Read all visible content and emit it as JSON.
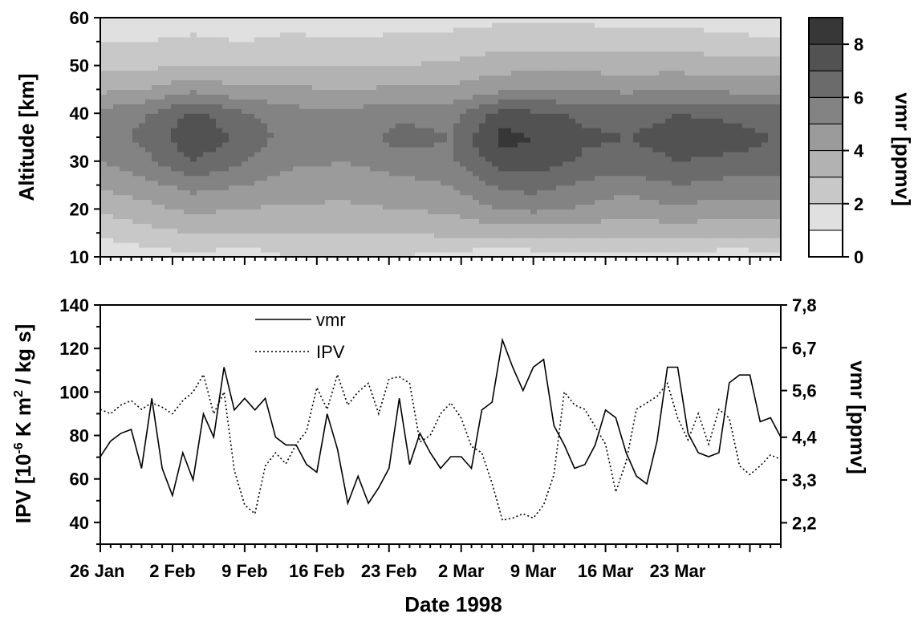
{
  "chart_data": [
    {
      "type": "heatmap",
      "xlabel": "",
      "ylabel": "Altitude [km]",
      "y_ticks": [
        "10",
        "20",
        "30",
        "40",
        "50",
        "60"
      ],
      "ylim": [
        10,
        60
      ],
      "xlim": [
        "1998-01-26",
        "1998-04-02"
      ],
      "colorbar": {
        "label": "vmr [ppmv]",
        "ticks": [
          "0",
          "2",
          "4",
          "6",
          "8"
        ],
        "levels": [
          0,
          1,
          2,
          3,
          4,
          5,
          6,
          7,
          8,
          9
        ],
        "colors": [
          "#ffffff",
          "#e0e0e0",
          "#c8c8c8",
          "#b2b2b2",
          "#9b9b9b",
          "#838383",
          "#6b6b6b",
          "#525252",
          "#373737",
          "#000000"
        ]
      },
      "altitudes": [
        10,
        15,
        20,
        25,
        30,
        35,
        40,
        45,
        50,
        55,
        60
      ],
      "dates": [
        "1998-01-26",
        "1998-01-30",
        "1998-02-04",
        "1998-02-09",
        "1998-02-13",
        "1998-02-19",
        "1998-02-24",
        "1998-03-01",
        "1998-03-06",
        "1998-03-09",
        "1998-03-14",
        "1998-03-18",
        "1998-03-23",
        "1998-03-28",
        "1998-04-01"
      ],
      "vmr": [
        [
          1.2,
          1.5,
          1.8,
          1.2,
          2.0,
          2.2,
          2.0,
          1.6,
          1.2,
          1.4,
          1.8,
          1.6,
          1.6,
          1.4,
          1.6
        ],
        [
          2.2,
          2.6,
          3.0,
          3.0,
          3.0,
          3.0,
          3.0,
          3.2,
          3.4,
          3.4,
          3.4,
          3.2,
          3.4,
          3.2,
          3.2
        ],
        [
          3.2,
          3.6,
          4.2,
          4.0,
          3.8,
          3.8,
          4.0,
          4.2,
          5.0,
          5.2,
          4.8,
          4.4,
          4.8,
          4.4,
          4.6
        ],
        [
          4.2,
          4.6,
          5.4,
          5.0,
          4.6,
          4.4,
          4.6,
          5.0,
          6.2,
          6.4,
          5.8,
          5.4,
          6.0,
          5.6,
          5.6
        ],
        [
          5.0,
          5.6,
          7.0,
          6.0,
          5.2,
          5.0,
          5.6,
          5.8,
          7.6,
          7.6,
          6.8,
          6.6,
          7.0,
          6.8,
          6.8
        ],
        [
          5.6,
          6.2,
          7.8,
          6.8,
          5.6,
          5.4,
          6.4,
          6.0,
          8.4,
          8.0,
          7.2,
          7.0,
          7.4,
          7.4,
          7.0
        ],
        [
          5.4,
          5.8,
          7.2,
          6.2,
          5.4,
          5.2,
          5.8,
          5.6,
          7.4,
          7.2,
          6.8,
          6.6,
          7.0,
          6.8,
          6.6
        ],
        [
          3.8,
          4.0,
          4.8,
          4.2,
          4.2,
          4.0,
          4.2,
          4.2,
          4.8,
          5.0,
          5.0,
          4.8,
          5.0,
          4.8,
          4.8
        ],
        [
          2.8,
          2.8,
          3.0,
          3.0,
          3.0,
          3.0,
          3.0,
          3.2,
          3.6,
          3.8,
          3.6,
          3.6,
          3.6,
          3.4,
          3.4
        ],
        [
          2.0,
          2.0,
          2.2,
          2.0,
          2.2,
          2.2,
          2.2,
          2.4,
          2.6,
          2.6,
          2.6,
          2.6,
          2.6,
          2.4,
          2.2
        ],
        [
          1.2,
          1.4,
          1.6,
          1.4,
          1.6,
          1.4,
          1.6,
          1.6,
          1.8,
          1.8,
          1.8,
          1.6,
          1.6,
          1.4,
          1.2
        ]
      ]
    },
    {
      "type": "line",
      "xlabel": "Date 1998",
      "ylabel": "IPV [10⁻⁶ K m² / kg s]",
      "ylabel_parts": {
        "pre": "IPV [10",
        "sup1": "-6",
        "mid": " K m",
        "sup2": "2",
        "post": " / kg s]"
      },
      "ylabel_right": "vmr [ppmv]",
      "ylim": [
        30,
        140
      ],
      "y_ticks": [
        "40",
        "60",
        "80",
        "100",
        "120",
        "140"
      ],
      "ylim_right": [
        1.65,
        7.8
      ],
      "y_ticks_right": [
        "2,2",
        "3,3",
        "4,4",
        "5,6",
        "6,7",
        "7,8"
      ],
      "x_tick_labels": [
        "26 Jan",
        "2 Feb",
        "9 Feb",
        "16 Feb",
        "23 Feb",
        "2 Mar",
        "9 Mar",
        "16 Mar",
        "23 Mar"
      ],
      "xlim": [
        "1998-01-26",
        "1998-04-02"
      ],
      "legend": {
        "position": "top-left",
        "entries": [
          "vmr",
          "IPV"
        ]
      },
      "series": [
        {
          "name": "vmr",
          "style": "solid",
          "axis": "right",
          "x": [
            "1998-01-26",
            "1998-01-27",
            "1998-01-28",
            "1998-01-29",
            "1998-01-30",
            "1998-01-31",
            "1998-02-01",
            "1998-02-02",
            "1998-02-03",
            "1998-02-04",
            "1998-02-05",
            "1998-02-06",
            "1998-02-07",
            "1998-02-08",
            "1998-02-09",
            "1998-02-10",
            "1998-02-11",
            "1998-02-12",
            "1998-02-13",
            "1998-02-14",
            "1998-02-15",
            "1998-02-16",
            "1998-02-17",
            "1998-02-18",
            "1998-02-19",
            "1998-02-20",
            "1998-02-21",
            "1998-02-22",
            "1998-02-23",
            "1998-02-24",
            "1998-02-25",
            "1998-02-26",
            "1998-02-27",
            "1998-02-28",
            "1998-03-01",
            "1998-03-02",
            "1998-03-03",
            "1998-03-04",
            "1998-03-05",
            "1998-03-06",
            "1998-03-07",
            "1998-03-08",
            "1998-03-09",
            "1998-03-10",
            "1998-03-11",
            "1998-03-12",
            "1998-03-13",
            "1998-03-14",
            "1998-03-15",
            "1998-03-16",
            "1998-03-17",
            "1998-03-18",
            "1998-03-19",
            "1998-03-20",
            "1998-03-21",
            "1998-03-22",
            "1998-03-23",
            "1998-03-24",
            "1998-03-25",
            "1998-03-26",
            "1998-03-27",
            "1998-03-28",
            "1998-03-29",
            "1998-03-30",
            "1998-03-31",
            "1998-04-01",
            "1998-04-02"
          ],
          "y": [
            3.9,
            4.3,
            4.5,
            4.6,
            3.6,
            5.4,
            3.6,
            2.9,
            4.0,
            3.3,
            5.0,
            4.4,
            6.2,
            5.1,
            5.4,
            5.1,
            5.4,
            4.4,
            4.2,
            4.2,
            3.7,
            3.5,
            5.0,
            4.1,
            2.7,
            3.4,
            2.7,
            3.1,
            3.6,
            5.4,
            3.7,
            4.5,
            4.0,
            3.6,
            3.9,
            3.9,
            3.6,
            5.1,
            5.3,
            6.9,
            6.2,
            5.6,
            6.2,
            6.4,
            4.7,
            4.2,
            3.6,
            3.7,
            4.2,
            5.1,
            4.9,
            4.0,
            3.4,
            3.2,
            4.3,
            6.2,
            6.2,
            4.5,
            4.0,
            3.9,
            4.0,
            5.8,
            6.0,
            6.0,
            4.8,
            4.9,
            4.4
          ]
        },
        {
          "name": "IPV",
          "style": "dotted",
          "axis": "left",
          "x": [
            "1998-01-26",
            "1998-01-27",
            "1998-01-28",
            "1998-01-29",
            "1998-01-30",
            "1998-01-31",
            "1998-02-01",
            "1998-02-02",
            "1998-02-03",
            "1998-02-04",
            "1998-02-05",
            "1998-02-06",
            "1998-02-07",
            "1998-02-08",
            "1998-02-09",
            "1998-02-10",
            "1998-02-11",
            "1998-02-12",
            "1998-02-13",
            "1998-02-14",
            "1998-02-15",
            "1998-02-16",
            "1998-02-17",
            "1998-02-18",
            "1998-02-19",
            "1998-02-20",
            "1998-02-21",
            "1998-02-22",
            "1998-02-23",
            "1998-02-24",
            "1998-02-25",
            "1998-02-26",
            "1998-02-27",
            "1998-02-28",
            "1998-03-01",
            "1998-03-02",
            "1998-03-03",
            "1998-03-04",
            "1998-03-05",
            "1998-03-06",
            "1998-03-07",
            "1998-03-08",
            "1998-03-09",
            "1998-03-10",
            "1998-03-11",
            "1998-03-12",
            "1998-03-13",
            "1998-03-14",
            "1998-03-15",
            "1998-03-16",
            "1998-03-17",
            "1998-03-18",
            "1998-03-19",
            "1998-03-20",
            "1998-03-21",
            "1998-03-22",
            "1998-03-23",
            "1998-03-24",
            "1998-03-25",
            "1998-03-26",
            "1998-03-27",
            "1998-03-28",
            "1998-03-29",
            "1998-03-30",
            "1998-03-31",
            "1998-04-01",
            "1998-04-02"
          ],
          "y": [
            92,
            90,
            94,
            96,
            92,
            95,
            93,
            90,
            96,
            100,
            108,
            90,
            100,
            64,
            48,
            44,
            66,
            72,
            67,
            76,
            82,
            102,
            92,
            108,
            94,
            100,
            104,
            90,
            106,
            107,
            104,
            77,
            80,
            90,
            95,
            88,
            75,
            72,
            58,
            41,
            42,
            44,
            42,
            48,
            62,
            100,
            94,
            92,
            84,
            76,
            54,
            68,
            92,
            95,
            98,
            104,
            88,
            78,
            90,
            76,
            92,
            88,
            66,
            62,
            66,
            71,
            69
          ]
        }
      ]
    }
  ]
}
